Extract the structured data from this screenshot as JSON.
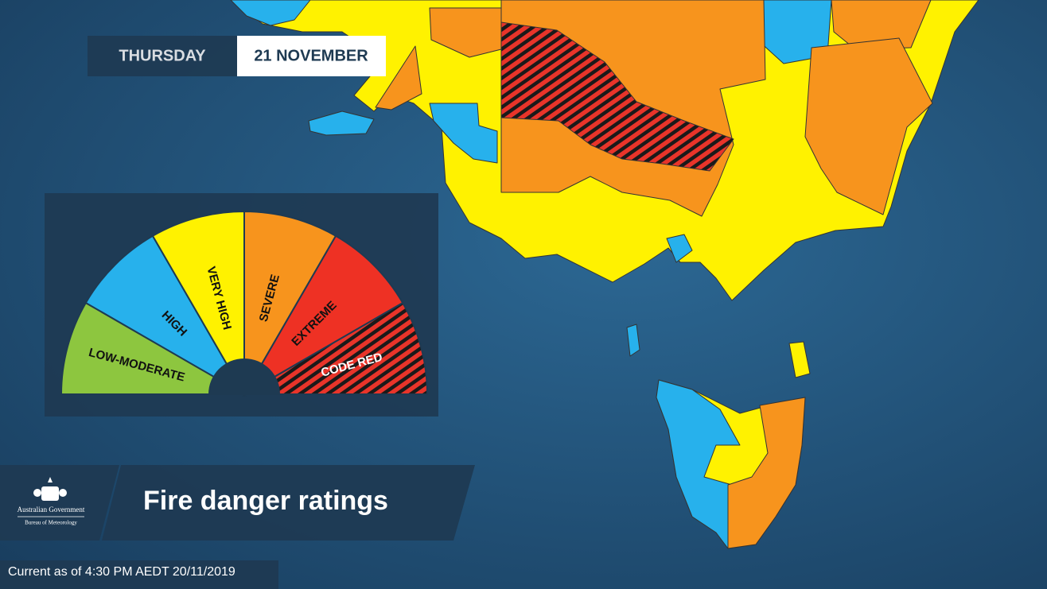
{
  "header": {
    "day": "THURSDAY",
    "date": "21 NOVEMBER"
  },
  "legend": {
    "levels": [
      "LOW-MODERATE",
      "HIGH",
      "VERY HIGH",
      "SEVERE",
      "EXTREME",
      "CODE RED"
    ]
  },
  "title": "Fire danger ratings",
  "logo": {
    "line1": "Australian Government",
    "line2": "Bureau of Meteorology"
  },
  "footer": "Current as of 4:30 PM AEDT 20/11/2019"
}
